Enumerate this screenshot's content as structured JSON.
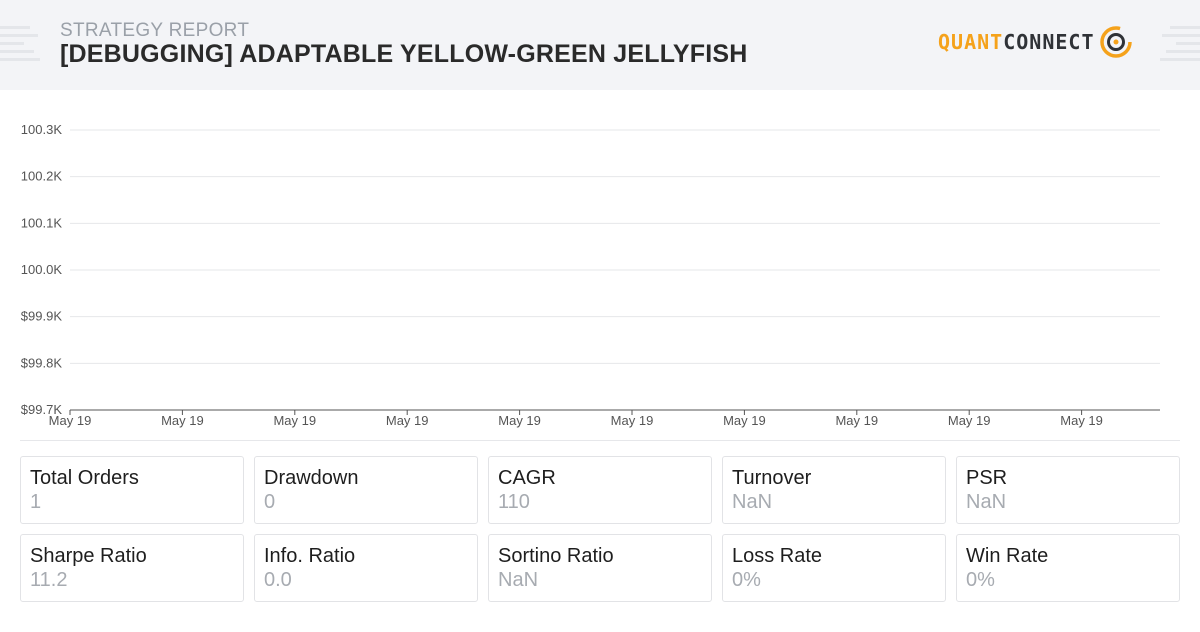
{
  "header": {
    "subtitle": "STRATEGY REPORT",
    "title": "[DEBUGGING] ADAPTABLE YELLOW-GREEN JELLYFISH",
    "logo_part1": "QUANT",
    "logo_part2": "CONNECT",
    "accent_color": "#f5a21b",
    "logo_icon": "quantconnect-logo-icon"
  },
  "chart_data": {
    "type": "line",
    "title": "",
    "xlabel": "",
    "ylabel": "",
    "y_tick_labels": [
      "100.3K",
      "100.2K",
      "100.1K",
      "100.0K",
      "$99.9K",
      "$99.8K",
      "$99.7K"
    ],
    "y_tick_values": [
      100300,
      100200,
      100100,
      100000,
      99900,
      99800,
      99700
    ],
    "x_tick_labels": [
      "May 19",
      "May 19",
      "May 19",
      "May 19",
      "May 19",
      "May 19",
      "May 19",
      "May 19",
      "May 19",
      "May 19"
    ],
    "ylim": [
      99700,
      100300
    ],
    "grid": true,
    "series": []
  },
  "stats": [
    {
      "label": "Total Orders",
      "value": "1"
    },
    {
      "label": "Drawdown",
      "value": "0"
    },
    {
      "label": "CAGR",
      "value": "110"
    },
    {
      "label": "Turnover",
      "value": "NaN"
    },
    {
      "label": "PSR",
      "value": "NaN"
    },
    {
      "label": "Sharpe Ratio",
      "value": "11.2"
    },
    {
      "label": "Info. Ratio",
      "value": "0.0"
    },
    {
      "label": "Sortino Ratio",
      "value": "NaN"
    },
    {
      "label": "Loss Rate",
      "value": "0%"
    },
    {
      "label": "Win Rate",
      "value": "0%"
    }
  ]
}
